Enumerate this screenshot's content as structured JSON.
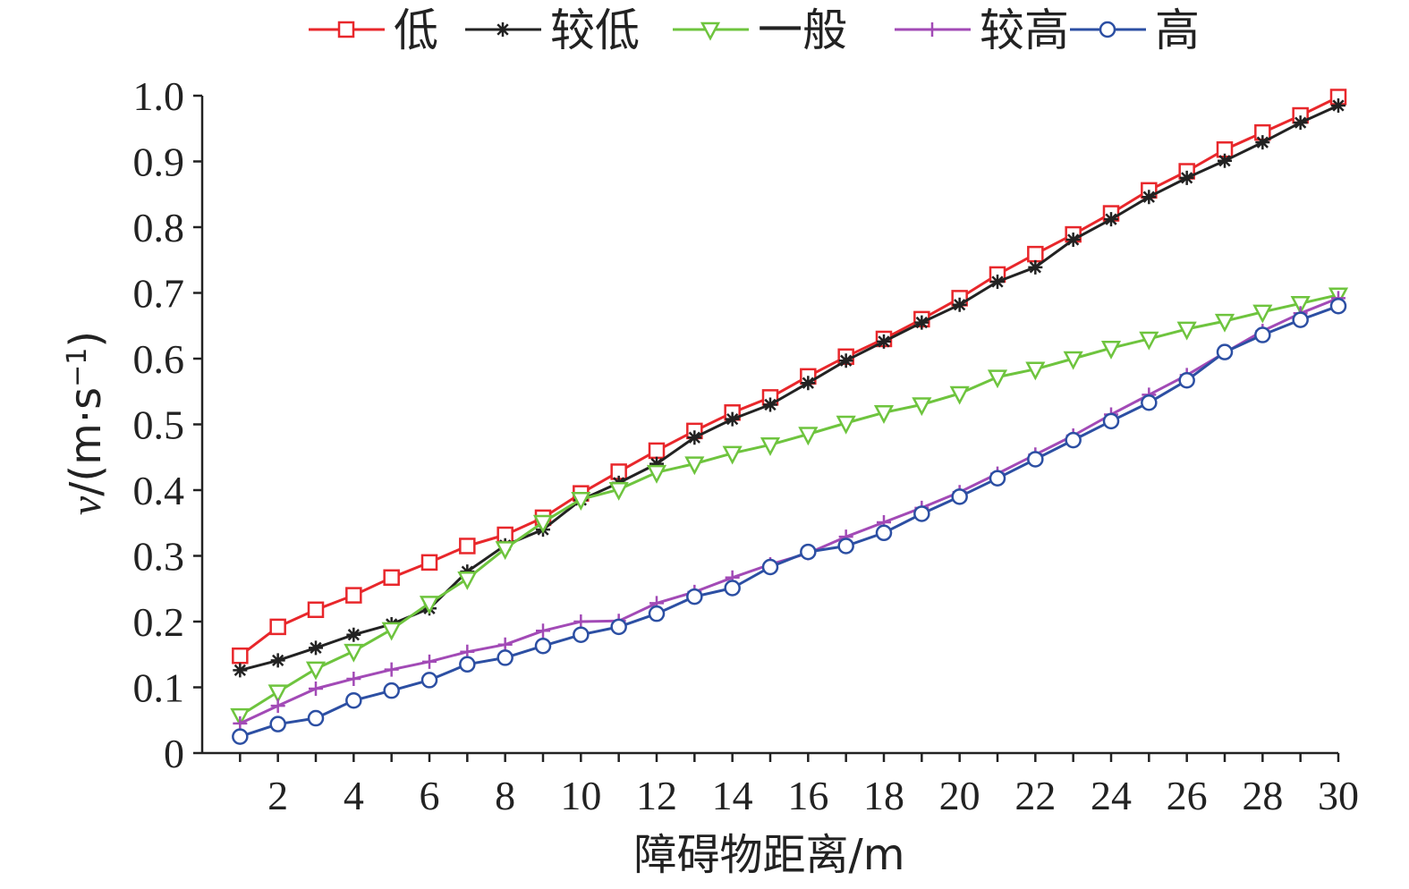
{
  "chart_data": {
    "type": "line",
    "xlabel": "障碍物距离/m",
    "ylabel": "v/(m·s⁻¹)",
    "xlim": [
      0,
      30
    ],
    "ylim": [
      0,
      1.0
    ],
    "x_ticks": [
      "2",
      "4",
      "6",
      "8",
      "10",
      "12",
      "14",
      "16",
      "18",
      "20",
      "22",
      "24",
      "26",
      "28",
      "30"
    ],
    "y_ticks": [
      "0",
      "0.1",
      "0.2",
      "0.3",
      "0.4",
      "0.5",
      "0.6",
      "0.7",
      "0.8",
      "0.9",
      "1.0"
    ],
    "legend_position": "top",
    "grid": false,
    "x": [
      1,
      2,
      3,
      4,
      5,
      6,
      7,
      8,
      9,
      10,
      11,
      12,
      13,
      14,
      15,
      16,
      17,
      18,
      19,
      20,
      21,
      22,
      23,
      24,
      25,
      26,
      27,
      28,
      29,
      30
    ],
    "series": [
      {
        "name": "低",
        "color": "#e8272b",
        "marker": "square",
        "values": [
          0.148,
          0.192,
          0.218,
          0.24,
          0.267,
          0.29,
          0.315,
          0.332,
          0.358,
          0.395,
          0.428,
          0.46,
          0.49,
          0.518,
          0.541,
          0.573,
          0.603,
          0.63,
          0.66,
          0.692,
          0.728,
          0.759,
          0.789,
          0.821,
          0.856,
          0.885,
          0.918,
          0.944,
          0.97,
          0.998
        ]
      },
      {
        "name": "较低",
        "color": "#222222",
        "marker": "star",
        "values": [
          0.126,
          0.141,
          0.16,
          0.18,
          0.196,
          0.22,
          0.276,
          0.316,
          0.34,
          0.385,
          0.411,
          0.44,
          0.48,
          0.508,
          0.53,
          0.563,
          0.597,
          0.626,
          0.655,
          0.682,
          0.717,
          0.739,
          0.781,
          0.812,
          0.846,
          0.875,
          0.901,
          0.929,
          0.959,
          0.985
        ]
      },
      {
        "name": "一般",
        "color": "#6ec43e",
        "marker": "triangle-down",
        "values": [
          0.057,
          0.093,
          0.128,
          0.155,
          0.188,
          0.228,
          0.265,
          0.311,
          0.351,
          0.386,
          0.401,
          0.427,
          0.44,
          0.456,
          0.469,
          0.485,
          0.502,
          0.518,
          0.53,
          0.547,
          0.572,
          0.584,
          0.6,
          0.616,
          0.63,
          0.645,
          0.657,
          0.671,
          0.684,
          0.697
        ]
      },
      {
        "name": "较高",
        "color": "#a24ab6",
        "marker": "plus",
        "values": [
          0.045,
          0.072,
          0.098,
          0.113,
          0.127,
          0.139,
          0.154,
          0.165,
          0.186,
          0.2,
          0.201,
          0.228,
          0.245,
          0.267,
          0.287,
          0.304,
          0.329,
          0.351,
          0.373,
          0.397,
          0.425,
          0.454,
          0.483,
          0.515,
          0.545,
          0.575,
          0.609,
          0.642,
          0.669,
          0.692
        ]
      },
      {
        "name": "高",
        "color": "#2c4fa3",
        "marker": "circle",
        "values": [
          0.025,
          0.044,
          0.053,
          0.08,
          0.095,
          0.111,
          0.135,
          0.145,
          0.163,
          0.18,
          0.192,
          0.212,
          0.238,
          0.251,
          0.283,
          0.306,
          0.315,
          0.335,
          0.364,
          0.39,
          0.418,
          0.447,
          0.476,
          0.505,
          0.533,
          0.567,
          0.61,
          0.636,
          0.659,
          0.68
        ]
      }
    ]
  }
}
